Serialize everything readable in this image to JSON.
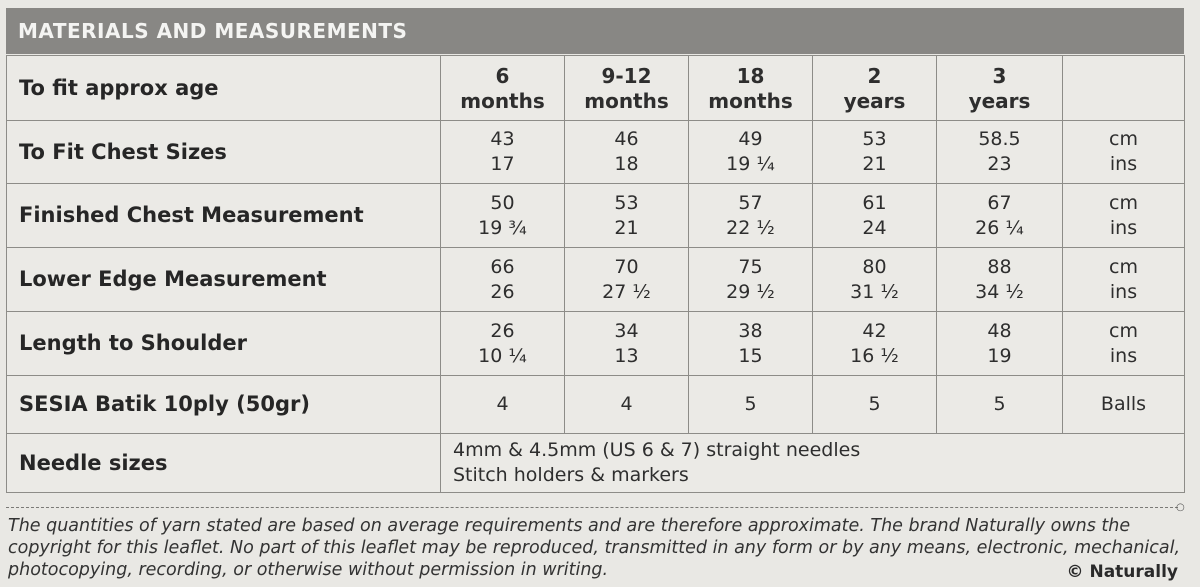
{
  "header": {
    "title": "MATERIALS AND MEASUREMENTS"
  },
  "table": {
    "age_row": {
      "label": "To fit approx age",
      "cols": [
        {
          "top": "6",
          "bottom": "months"
        },
        {
          "top": "9-12",
          "bottom": "months"
        },
        {
          "top": "18",
          "bottom": "months"
        },
        {
          "top": "2",
          "bottom": "years"
        },
        {
          "top": "3",
          "bottom": "years"
        }
      ]
    },
    "rows": [
      {
        "label": "To Fit Chest Sizes",
        "cm": [
          "43",
          "46",
          "49",
          "53",
          "58.5"
        ],
        "ins": [
          "17",
          "18",
          "19 ¼",
          "21",
          "23"
        ],
        "unit_top": "cm",
        "unit_bottom": "ins"
      },
      {
        "label": "Finished Chest Measurement",
        "cm": [
          "50",
          "53",
          "57",
          "61",
          "67"
        ],
        "ins": [
          "19 ¾",
          "21",
          "22 ½",
          "24",
          "26 ¼"
        ],
        "unit_top": "cm",
        "unit_bottom": "ins"
      },
      {
        "label": "Lower Edge Measurement",
        "cm": [
          "66",
          "70",
          "75",
          "80",
          "88"
        ],
        "ins": [
          "26",
          "27 ½",
          "29 ½",
          "31 ½",
          "34 ½"
        ],
        "unit_top": "cm",
        "unit_bottom": "ins"
      },
      {
        "label": "Length to Shoulder",
        "cm": [
          "26",
          "34",
          "38",
          "42",
          "48"
        ],
        "ins": [
          "10 ¼",
          "13",
          "15",
          "16 ½",
          "19"
        ],
        "unit_top": "cm",
        "unit_bottom": "ins"
      }
    ],
    "yarn_row": {
      "label": "SESIA Batik 10ply (50gr)",
      "values": [
        "4",
        "4",
        "5",
        "5",
        "5"
      ],
      "unit": "Balls"
    },
    "needle_row": {
      "label": "Needle sizes",
      "line1": "4mm & 4.5mm (US 6 & 7) straight needles",
      "line2": "Stitch holders & markers"
    }
  },
  "footer": {
    "disclaimer": "The quantities of yarn stated are based on average requirements and are therefore approximate. The brand Naturally owns the copyright for this leaflet. No part of this leaflet may be reproduced, transmitted in any form or by any means, electronic, mechanical, photocopying, recording, or otherwise without permission in writing.",
    "copyright": "© Naturally"
  }
}
